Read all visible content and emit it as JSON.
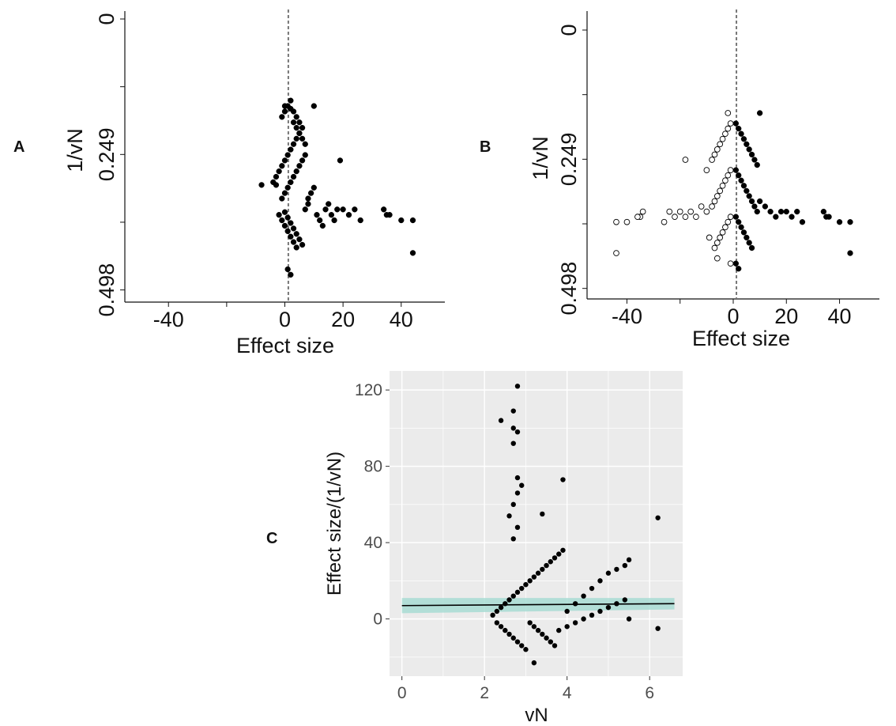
{
  "figure": {
    "panel_labels": [
      "A",
      "B",
      "C"
    ]
  },
  "chart_data": [
    {
      "panel": "A",
      "type": "scatter",
      "title": "",
      "xlabel": "Effect size",
      "ylabel": "1/vN",
      "xlim": [
        -55,
        55
      ],
      "ylim": [
        0,
        0.5
      ],
      "y_reversed": true,
      "x_ticks": [
        -40,
        0,
        20,
        40
      ],
      "y_ticks": [
        0,
        0.249,
        0.498
      ],
      "y_tick_labels": [
        "0",
        "0.249",
        "0.498"
      ],
      "reference_line_x": 1.2,
      "grid": false,
      "series": [
        {
          "marker": "filled",
          "points": [
            [
              -3,
              0.305
            ],
            [
              -2,
              0.28
            ],
            [
              -1,
              0.27
            ],
            [
              0,
              0.26
            ],
            [
              1,
              0.25
            ],
            [
              2,
              0.24
            ],
            [
              3,
              0.23
            ],
            [
              4,
              0.22
            ],
            [
              5,
              0.21
            ],
            [
              -1,
              0.33
            ],
            [
              0,
              0.32
            ],
            [
              1,
              0.31
            ],
            [
              2,
              0.3
            ],
            [
              3,
              0.29
            ],
            [
              4,
              0.28
            ],
            [
              5,
              0.27
            ],
            [
              6,
              0.26
            ],
            [
              7,
              0.25
            ],
            [
              -1,
              0.18
            ],
            [
              0,
              0.17
            ],
            [
              1,
              0.16
            ],
            [
              2,
              0.15
            ],
            [
              3,
              0.19
            ],
            [
              4,
              0.2
            ],
            [
              5,
              0.21
            ],
            [
              6,
              0.22
            ],
            [
              7,
              0.23
            ],
            [
              0,
              0.355
            ],
            [
              1,
              0.365
            ],
            [
              2,
              0.375
            ],
            [
              3,
              0.385
            ],
            [
              4,
              0.395
            ],
            [
              5,
              0.405
            ],
            [
              6,
              0.415
            ],
            [
              7,
              0.35
            ],
            [
              8,
              0.34
            ],
            [
              -4,
              0.3
            ],
            [
              -3,
              0.29
            ],
            [
              -2,
              0.36
            ],
            [
              -1,
              0.37
            ],
            [
              0,
              0.38
            ],
            [
              1,
              0.39
            ],
            [
              2,
              0.4
            ],
            [
              3,
              0.41
            ],
            [
              4,
              0.42
            ],
            [
              1,
              0.46
            ],
            [
              2,
              0.47
            ],
            [
              8,
              0.33
            ],
            [
              9,
              0.32
            ],
            [
              10,
              0.31
            ],
            [
              11,
              0.36
            ],
            [
              12,
              0.37
            ],
            [
              13,
              0.38
            ],
            [
              14,
              0.35
            ],
            [
              15,
              0.34
            ],
            [
              16,
              0.36
            ],
            [
              17,
              0.37
            ],
            [
              18,
              0.35
            ],
            [
              19,
              0.26
            ],
            [
              20,
              0.35
            ],
            [
              22,
              0.36
            ],
            [
              24,
              0.35
            ],
            [
              26,
              0.37
            ],
            [
              34,
              0.35
            ],
            [
              35,
              0.36
            ],
            [
              36,
              0.36
            ],
            [
              40,
              0.37
            ],
            [
              44,
              0.37
            ],
            [
              44,
              0.43
            ],
            [
              -8,
              0.305
            ],
            [
              10,
              0.16
            ],
            [
              0,
              0.16
            ],
            [
              2,
              0.165
            ],
            [
              3,
              0.17
            ],
            [
              4,
              0.18
            ],
            [
              5,
              0.19
            ],
            [
              6,
              0.2
            ]
          ]
        }
      ]
    },
    {
      "panel": "B",
      "type": "scatter",
      "title": "",
      "xlabel": "Effect size",
      "ylabel": "1/vN",
      "xlim": [
        -55,
        55
      ],
      "ylim": [
        0,
        0.5
      ],
      "y_reversed": true,
      "x_ticks": [
        -40,
        0,
        20,
        40
      ],
      "y_ticks": [
        0,
        0.249,
        0.498
      ],
      "y_tick_labels": [
        "0",
        "0.249",
        "0.498"
      ],
      "reference_line_x": 1.2,
      "grid": false,
      "series": [
        {
          "marker": "filled",
          "points": [
            [
              1,
              0.18
            ],
            [
              2,
              0.19
            ],
            [
              3,
              0.2
            ],
            [
              4,
              0.21
            ],
            [
              5,
              0.22
            ],
            [
              6,
              0.23
            ],
            [
              7,
              0.24
            ],
            [
              8,
              0.25
            ],
            [
              9,
              0.26
            ],
            [
              1,
              0.27
            ],
            [
              2,
              0.28
            ],
            [
              3,
              0.29
            ],
            [
              4,
              0.3
            ],
            [
              5,
              0.31
            ],
            [
              6,
              0.32
            ],
            [
              7,
              0.33
            ],
            [
              8,
              0.34
            ],
            [
              9,
              0.35
            ],
            [
              1,
              0.36
            ],
            [
              2,
              0.37
            ],
            [
              3,
              0.38
            ],
            [
              4,
              0.39
            ],
            [
              5,
              0.4
            ],
            [
              6,
              0.41
            ],
            [
              7,
              0.42
            ],
            [
              1,
              0.45
            ],
            [
              2,
              0.46
            ],
            [
              10,
              0.33
            ],
            [
              12,
              0.34
            ],
            [
              14,
              0.35
            ],
            [
              16,
              0.36
            ],
            [
              18,
              0.35
            ],
            [
              20,
              0.35
            ],
            [
              22,
              0.36
            ],
            [
              24,
              0.35
            ],
            [
              26,
              0.37
            ],
            [
              34,
              0.35
            ],
            [
              35,
              0.36
            ],
            [
              36,
              0.36
            ],
            [
              40,
              0.37
            ],
            [
              44,
              0.37
            ],
            [
              44,
              0.43
            ],
            [
              10,
              0.16
            ]
          ]
        },
        {
          "marker": "open",
          "points": [
            [
              -1,
              0.18
            ],
            [
              -2,
              0.19
            ],
            [
              -3,
              0.2
            ],
            [
              -4,
              0.21
            ],
            [
              -5,
              0.22
            ],
            [
              -6,
              0.23
            ],
            [
              -7,
              0.24
            ],
            [
              -8,
              0.25
            ],
            [
              -1,
              0.27
            ],
            [
              -2,
              0.28
            ],
            [
              -3,
              0.29
            ],
            [
              -4,
              0.3
            ],
            [
              -5,
              0.31
            ],
            [
              -6,
              0.32
            ],
            [
              -7,
              0.33
            ],
            [
              -8,
              0.34
            ],
            [
              -1,
              0.36
            ],
            [
              -2,
              0.37
            ],
            [
              -3,
              0.38
            ],
            [
              -4,
              0.39
            ],
            [
              -5,
              0.4
            ],
            [
              -6,
              0.41
            ],
            [
              -7,
              0.42
            ],
            [
              -1,
              0.45
            ],
            [
              -10,
              0.35
            ],
            [
              -12,
              0.34
            ],
            [
              -14,
              0.36
            ],
            [
              -16,
              0.35
            ],
            [
              -18,
              0.36
            ],
            [
              -20,
              0.35
            ],
            [
              -22,
              0.36
            ],
            [
              -24,
              0.35
            ],
            [
              -26,
              0.37
            ],
            [
              -34,
              0.35
            ],
            [
              -35,
              0.36
            ],
            [
              -36,
              0.36
            ],
            [
              -40,
              0.37
            ],
            [
              -44,
              0.37
            ],
            [
              -44,
              0.43
            ],
            [
              -10,
              0.27
            ],
            [
              -18,
              0.25
            ],
            [
              -9,
              0.4
            ],
            [
              -6,
              0.44
            ],
            [
              -2,
              0.16
            ]
          ]
        }
      ]
    },
    {
      "panel": "C",
      "type": "scatter",
      "title": "",
      "xlabel": "vN",
      "ylabel": "Effect size/(1/vN)",
      "xlim": [
        -0.3,
        6.8
      ],
      "ylim": [
        -30,
        130
      ],
      "x_ticks": [
        0,
        2,
        4,
        6
      ],
      "y_ticks": [
        0,
        40,
        80,
        120
      ],
      "grid": true,
      "background": "#ebebeb",
      "fit_line": {
        "x": [
          0,
          6.6
        ],
        "y": [
          7,
          8
        ],
        "ci_low": [
          3,
          5
        ],
        "ci_high": [
          11,
          11
        ],
        "line_color": "#000000",
        "band_color": "#a8dcd4"
      },
      "series": [
        {
          "marker": "filled",
          "points": [
            [
              2.2,
              2
            ],
            [
              2.3,
              4
            ],
            [
              2.4,
              6
            ],
            [
              2.5,
              8
            ],
            [
              2.6,
              10
            ],
            [
              2.7,
              12
            ],
            [
              2.8,
              14
            ],
            [
              2.9,
              16
            ],
            [
              3.0,
              18
            ],
            [
              3.1,
              20
            ],
            [
              3.2,
              22
            ],
            [
              3.3,
              24
            ],
            [
              3.4,
              26
            ],
            [
              3.5,
              28
            ],
            [
              3.6,
              30
            ],
            [
              3.7,
              32
            ],
            [
              3.8,
              34
            ],
            [
              3.9,
              36
            ],
            [
              2.3,
              -2
            ],
            [
              2.4,
              -4
            ],
            [
              2.5,
              -6
            ],
            [
              2.6,
              -8
            ],
            [
              2.7,
              -10
            ],
            [
              2.8,
              -12
            ],
            [
              2.9,
              -14
            ],
            [
              3.0,
              -16
            ],
            [
              3.1,
              -2
            ],
            [
              3.2,
              -4
            ],
            [
              3.3,
              -6
            ],
            [
              3.4,
              -8
            ],
            [
              3.5,
              -10
            ],
            [
              3.6,
              -12
            ],
            [
              3.7,
              -14
            ],
            [
              3.8,
              -6
            ],
            [
              4.0,
              4
            ],
            [
              4.2,
              8
            ],
            [
              4.4,
              12
            ],
            [
              4.6,
              16
            ],
            [
              4.8,
              20
            ],
            [
              5.0,
              24
            ],
            [
              5.2,
              26
            ],
            [
              5.4,
              28
            ],
            [
              5.5,
              31
            ],
            [
              4.0,
              -4
            ],
            [
              4.2,
              -2
            ],
            [
              4.4,
              0
            ],
            [
              4.6,
              2
            ],
            [
              4.8,
              4
            ],
            [
              5.0,
              6
            ],
            [
              5.2,
              8
            ],
            [
              5.4,
              10
            ],
            [
              5.5,
              0
            ],
            [
              2.7,
              42
            ],
            [
              2.8,
              48
            ],
            [
              2.6,
              54
            ],
            [
              2.7,
              60
            ],
            [
              2.8,
              66
            ],
            [
              2.9,
              70
            ],
            [
              2.8,
              74
            ],
            [
              2.7,
              92
            ],
            [
              2.8,
              98
            ],
            [
              2.7,
              100
            ],
            [
              2.4,
              104
            ],
            [
              2.7,
              109
            ],
            [
              2.8,
              122
            ],
            [
              3.4,
              55
            ],
            [
              3.9,
              73
            ],
            [
              6.2,
              53
            ],
            [
              6.2,
              -5
            ],
            [
              3.2,
              -23
            ]
          ]
        }
      ]
    }
  ]
}
